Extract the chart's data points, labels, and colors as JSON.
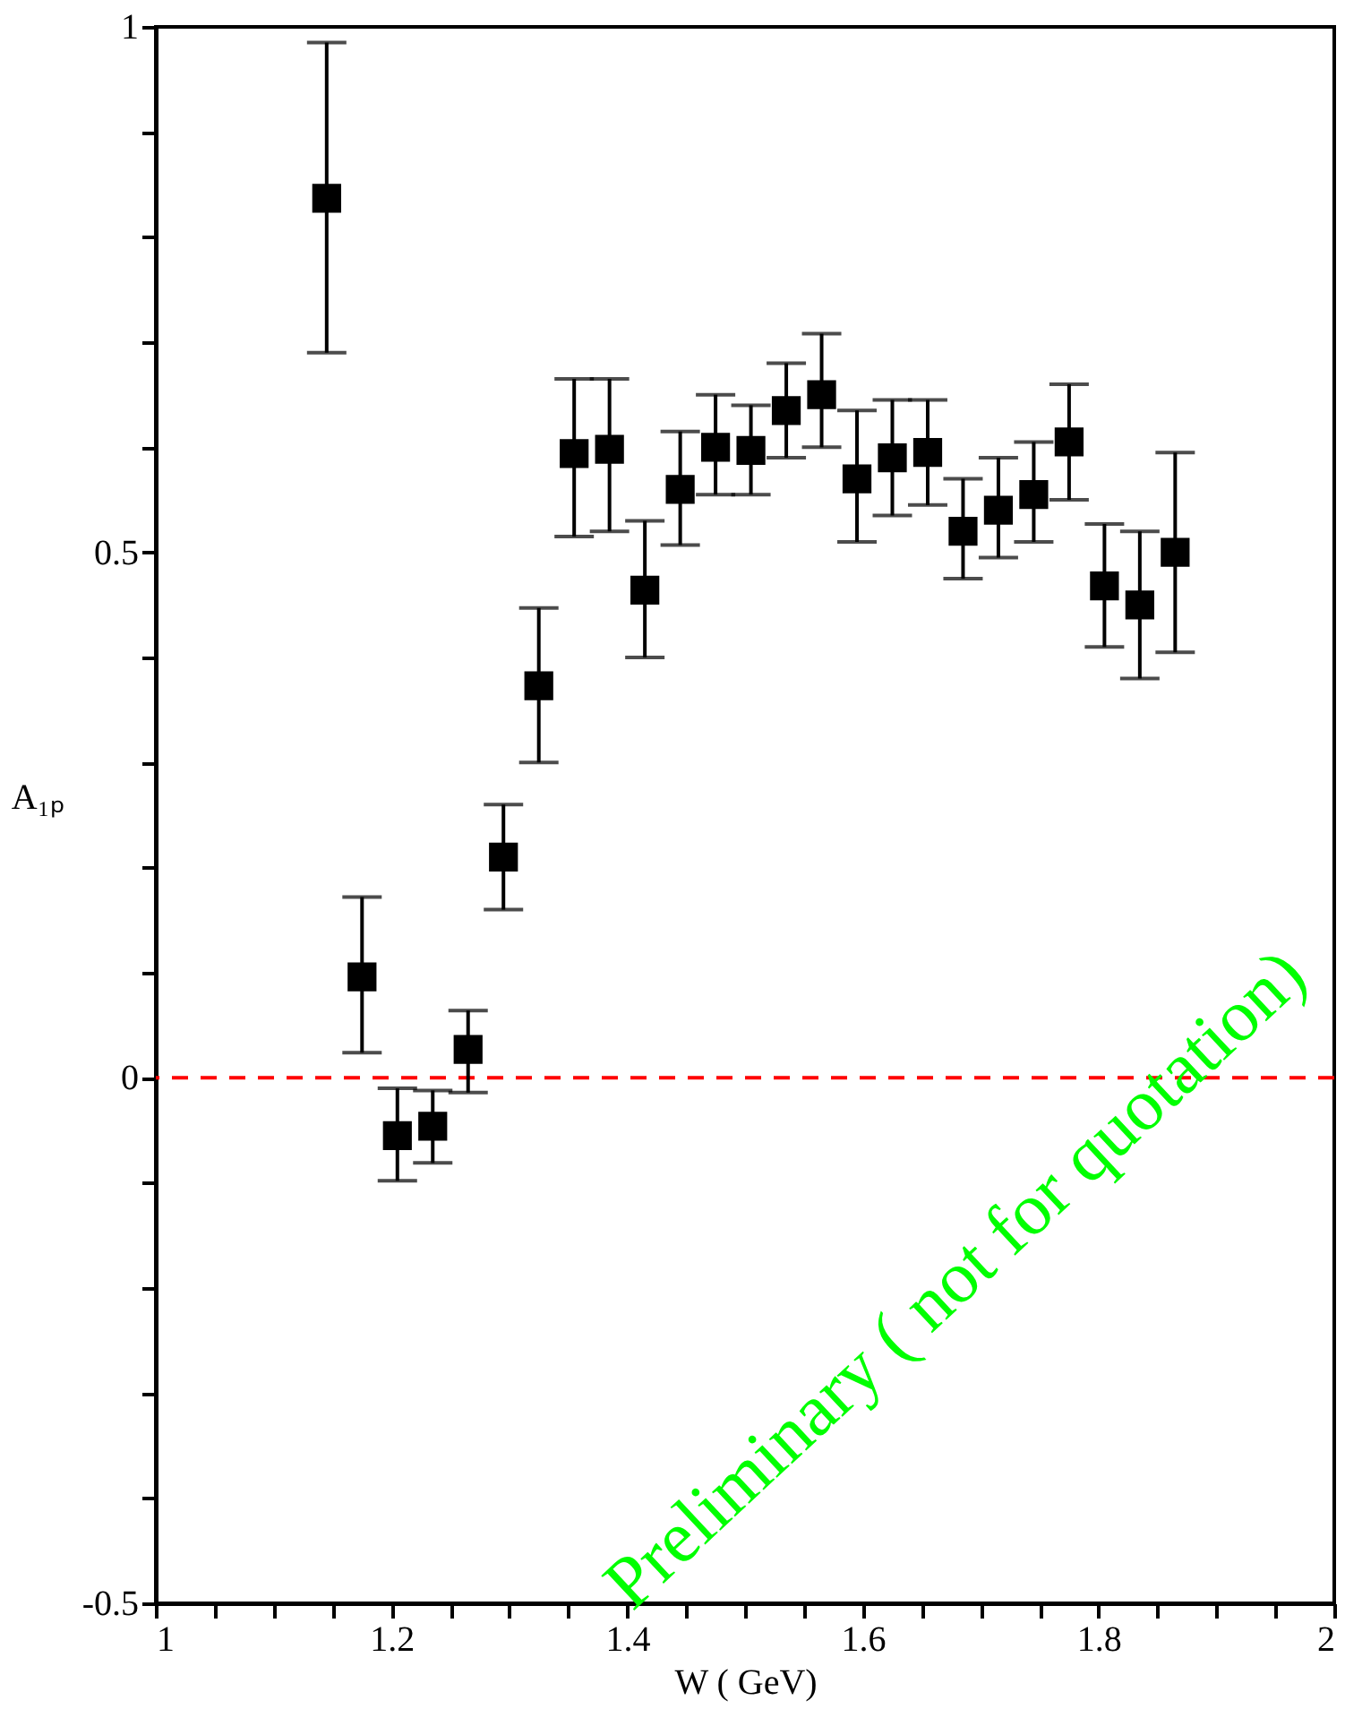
{
  "chart_data": {
    "type": "scatter",
    "xlabel": "W ( GeV)",
    "ylabel": "A₁ₚ",
    "x": [
      1.145,
      1.175,
      1.205,
      1.235,
      1.265,
      1.295,
      1.325,
      1.355,
      1.385,
      1.415,
      1.445,
      1.475,
      1.505,
      1.535,
      1.565,
      1.595,
      1.625,
      1.655,
      1.685,
      1.715,
      1.745,
      1.775,
      1.805,
      1.835,
      1.865
    ],
    "series": [
      {
        "color": "#000000",
        "marker": "square",
        "values": [
          0.837,
          0.096,
          -0.055,
          -0.046,
          0.027,
          0.21,
          0.373,
          0.594,
          0.598,
          0.464,
          0.56,
          0.6,
          0.597,
          0.635,
          0.65,
          0.57,
          0.59,
          0.595,
          0.52,
          0.54,
          0.555,
          0.605,
          0.468,
          0.45,
          0.5
        ],
        "errors": [
          [
            0.69,
            0.985
          ],
          [
            0.024,
            0.172
          ],
          [
            -0.098,
            -0.01
          ],
          [
            -0.081,
            -0.012
          ],
          [
            -0.014,
            0.064
          ],
          [
            0.16,
            0.26
          ],
          [
            0.3,
            0.447
          ],
          [
            0.515,
            0.665
          ],
          [
            0.52,
            0.665
          ],
          [
            0.4,
            0.53
          ],
          [
            0.507,
            0.615
          ],
          [
            0.555,
            0.65
          ],
          [
            0.555,
            0.64
          ],
          [
            0.59,
            0.68
          ],
          [
            0.6,
            0.708
          ],
          [
            0.51,
            0.635
          ],
          [
            0.535,
            0.645
          ],
          [
            0.545,
            0.645
          ],
          [
            0.475,
            0.57
          ],
          [
            0.495,
            0.59
          ],
          [
            0.51,
            0.605
          ],
          [
            0.55,
            0.66
          ],
          [
            0.41,
            0.527
          ],
          [
            0.38,
            0.52
          ],
          [
            0.405,
            0.595
          ]
        ]
      }
    ],
    "xlim": [
      1,
      2
    ],
    "xticks": [
      1,
      {
        "value": 1.05,
        "label": null
      },
      {
        "value": 1.1,
        "label": null
      },
      {
        "value": 1.15,
        "label": null
      },
      1.2,
      {
        "value": 1.25,
        "label": null
      },
      {
        "value": 1.3,
        "label": null
      },
      {
        "value": 1.35,
        "label": null
      },
      1.4,
      {
        "value": 1.45,
        "label": null
      },
      {
        "value": 1.5,
        "label": null
      },
      {
        "value": 1.55,
        "label": null
      },
      1.6,
      {
        "value": 1.65,
        "label": null
      },
      {
        "value": 1.7,
        "label": null
      },
      {
        "value": 1.75,
        "label": null
      },
      1.8,
      {
        "value": 1.85,
        "label": null
      },
      {
        "value": 1.9,
        "label": null
      },
      {
        "value": 1.95,
        "label": null
      },
      2
    ],
    "ylim": [
      -0.5,
      1
    ],
    "yticks": [
      -0.5,
      {
        "value": -0.4,
        "label": null
      },
      {
        "value": -0.3,
        "label": null
      },
      {
        "value": -0.2,
        "label": null
      },
      {
        "value": -0.1,
        "label": null
      },
      0,
      {
        "value": 0.1,
        "label": null
      },
      {
        "value": 0.2,
        "label": null
      },
      {
        "value": 0.3,
        "label": null
      },
      {
        "value": 0.4,
        "label": null
      },
      0.5,
      {
        "value": 0.6,
        "label": null
      },
      {
        "value": 0.7,
        "label": null
      },
      {
        "value": 0.8,
        "label": null
      },
      {
        "value": 0.9,
        "label": null
      },
      1
    ],
    "ref_lines": [
      {
        "axis": "y",
        "value": 0,
        "color": "#ff0000",
        "line_style": "dashed"
      }
    ],
    "annotations": [
      "Preliminary ( not for quotation)"
    ],
    "grid": false
  }
}
